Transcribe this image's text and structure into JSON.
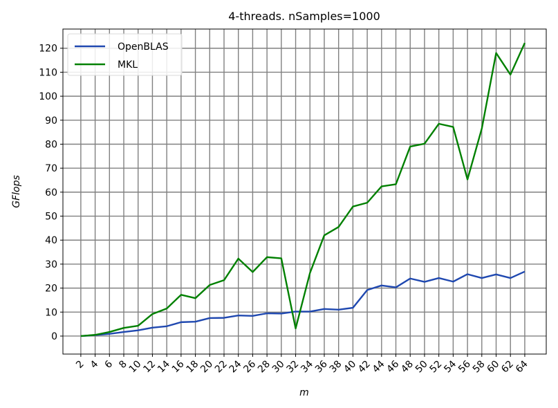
{
  "chart_data": {
    "type": "line",
    "title": "4-threads. nSamples=1000",
    "xlabel": "m",
    "ylabel": "GFlops",
    "x": [
      2,
      4,
      6,
      8,
      10,
      12,
      14,
      16,
      18,
      20,
      22,
      24,
      26,
      28,
      30,
      32,
      34,
      36,
      38,
      40,
      42,
      44,
      46,
      48,
      50,
      52,
      54,
      56,
      58,
      60,
      62,
      64
    ],
    "x_tick_labels": [
      "2",
      "4",
      "6",
      "8",
      "10",
      "12",
      "14",
      "16",
      "18",
      "20",
      "22",
      "24",
      "26",
      "28",
      "30",
      "32",
      "34",
      "36",
      "38",
      "40",
      "42",
      "44",
      "46",
      "48",
      "50",
      "52",
      "54",
      "56",
      "58",
      "60",
      "62",
      "64"
    ],
    "y_ticks": [
      0,
      10,
      20,
      30,
      40,
      50,
      60,
      70,
      80,
      90,
      100,
      110,
      120
    ],
    "y_tick_labels": [
      "0",
      "10",
      "20",
      "30",
      "40",
      "50",
      "60",
      "70",
      "80",
      "90",
      "100",
      "110",
      "120"
    ],
    "xlim": [
      -0.5,
      67
    ],
    "ylim": [
      -7.5,
      128
    ],
    "grid": true,
    "legend_position": "top-left",
    "series": [
      {
        "name": "OpenBLAS",
        "color": "#1f48b0",
        "values": [
          0.0,
          0.4,
          0.9,
          1.7,
          2.4,
          3.5,
          4.1,
          5.8,
          6.0,
          7.5,
          7.6,
          8.6,
          8.4,
          9.5,
          9.4,
          10.2,
          10.2,
          11.3,
          11.0,
          11.8,
          19.2,
          21.1,
          20.3,
          24.0,
          22.6,
          24.2,
          22.7,
          25.8,
          24.2,
          25.7,
          24.2,
          26.9
        ]
      },
      {
        "name": "MKL",
        "color": "#008000",
        "values": [
          0.0,
          0.5,
          1.7,
          3.4,
          4.3,
          9.2,
          11.5,
          17.2,
          15.8,
          21.3,
          23.3,
          32.3,
          26.7,
          32.9,
          32.4,
          3.2,
          26.3,
          42.0,
          45.5,
          54.0,
          55.6,
          62.4,
          63.3,
          79.0,
          80.2,
          88.5,
          87.2,
          65.3,
          86.5,
          118.0,
          109.0,
          122.2
        ]
      }
    ]
  }
}
